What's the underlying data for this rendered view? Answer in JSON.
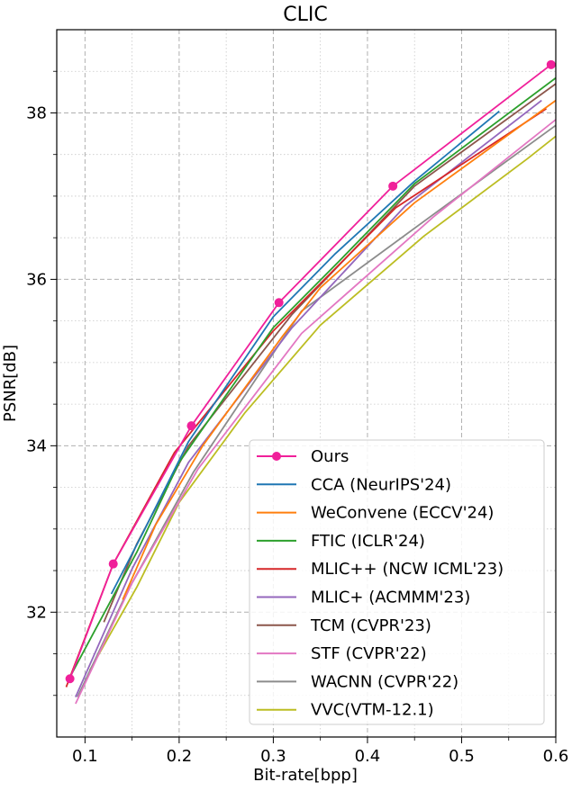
{
  "chart_data": {
    "type": "line",
    "title": "CLIC",
    "xlabel": "Bit-rate[bpp]",
    "ylabel": "PSNR[dB]",
    "xlim": [
      0.07,
      0.6
    ],
    "ylim": [
      30.5,
      39.0
    ],
    "xticks": [
      0.1,
      0.2,
      0.3,
      0.4,
      0.5,
      0.6
    ],
    "xtick_labels": [
      "0.1",
      "0.2",
      "0.3",
      "0.4",
      "0.5",
      "0.6"
    ],
    "yticks": [
      32,
      34,
      36,
      38
    ],
    "ytick_labels": [
      "32",
      "34",
      "36",
      "38"
    ],
    "grid": true,
    "legend_position": "bottom-right",
    "series": [
      {
        "name": "Ours",
        "color": "#f0209a",
        "marker": true,
        "points": [
          [
            0.084,
            31.2
          ],
          [
            0.13,
            32.58
          ],
          [
            0.213,
            34.24
          ],
          [
            0.306,
            35.72
          ],
          [
            0.427,
            37.12
          ],
          [
            0.595,
            38.58
          ]
        ]
      },
      {
        "name": "CCA (NeurIPS'24)",
        "color": "#1f77b4",
        "points": [
          [
            0.128,
            32.22
          ],
          [
            0.16,
            32.92
          ],
          [
            0.21,
            34.05
          ],
          [
            0.3,
            35.55
          ],
          [
            0.365,
            36.3
          ],
          [
            0.45,
            37.18
          ],
          [
            0.54,
            38.02
          ]
        ]
      },
      {
        "name": "WeConvene (ECCV'24)",
        "color": "#ff7f0e",
        "points": [
          [
            0.14,
            32.15
          ],
          [
            0.175,
            33.05
          ],
          [
            0.225,
            34.0
          ],
          [
            0.31,
            35.32
          ],
          [
            0.35,
            35.9
          ],
          [
            0.45,
            36.92
          ],
          [
            0.6,
            38.15
          ]
        ]
      },
      {
        "name": "FTIC (ICLR'24)",
        "color": "#2ca02c",
        "points": [
          [
            0.083,
            31.2
          ],
          [
            0.155,
            32.72
          ],
          [
            0.2,
            33.8
          ],
          [
            0.3,
            35.42
          ],
          [
            0.37,
            36.22
          ],
          [
            0.45,
            37.15
          ],
          [
            0.6,
            38.42
          ]
        ]
      },
      {
        "name": "MLIC++ (NCW ICML'23)",
        "color": "#d62728",
        "points": [
          [
            0.08,
            31.1
          ],
          [
            0.13,
            32.58
          ],
          [
            0.195,
            33.92
          ],
          [
            0.3,
            35.38
          ],
          [
            0.43,
            36.86
          ],
          [
            0.59,
            38.05
          ]
        ]
      },
      {
        "name": "MLIC+ (ACMMM'23)",
        "color": "#9467bd",
        "points": [
          [
            0.09,
            30.98
          ],
          [
            0.15,
            32.52
          ],
          [
            0.21,
            33.8
          ],
          [
            0.32,
            35.42
          ],
          [
            0.44,
            36.88
          ],
          [
            0.585,
            38.15
          ]
        ]
      },
      {
        "name": "TCM (CVPR'23)",
        "color": "#8c564b",
        "points": [
          [
            0.12,
            31.88
          ],
          [
            0.155,
            32.82
          ],
          [
            0.21,
            34.0
          ],
          [
            0.32,
            35.58
          ],
          [
            0.45,
            37.12
          ],
          [
            0.6,
            38.35
          ]
        ]
      },
      {
        "name": "STF (CVPR'22)",
        "color": "#e377c2",
        "points": [
          [
            0.09,
            30.9
          ],
          [
            0.15,
            32.35
          ],
          [
            0.22,
            33.72
          ],
          [
            0.33,
            35.35
          ],
          [
            0.47,
            36.75
          ],
          [
            0.6,
            37.92
          ]
        ]
      },
      {
        "name": "WACNN (CVPR'22)",
        "color": "#8c8c8c",
        "points": [
          [
            0.092,
            30.98
          ],
          [
            0.145,
            32.25
          ],
          [
            0.215,
            33.68
          ],
          [
            0.33,
            35.62
          ],
          [
            0.47,
            36.78
          ],
          [
            0.6,
            37.85
          ]
        ]
      },
      {
        "name": "VVC(VTM-12.1)",
        "color": "#bcbd22",
        "points": [
          [
            0.105,
            31.3
          ],
          [
            0.155,
            32.3
          ],
          [
            0.2,
            33.32
          ],
          [
            0.27,
            34.4
          ],
          [
            0.35,
            35.45
          ],
          [
            0.46,
            36.52
          ],
          [
            0.57,
            37.45
          ],
          [
            0.6,
            37.72
          ]
        ]
      }
    ]
  }
}
